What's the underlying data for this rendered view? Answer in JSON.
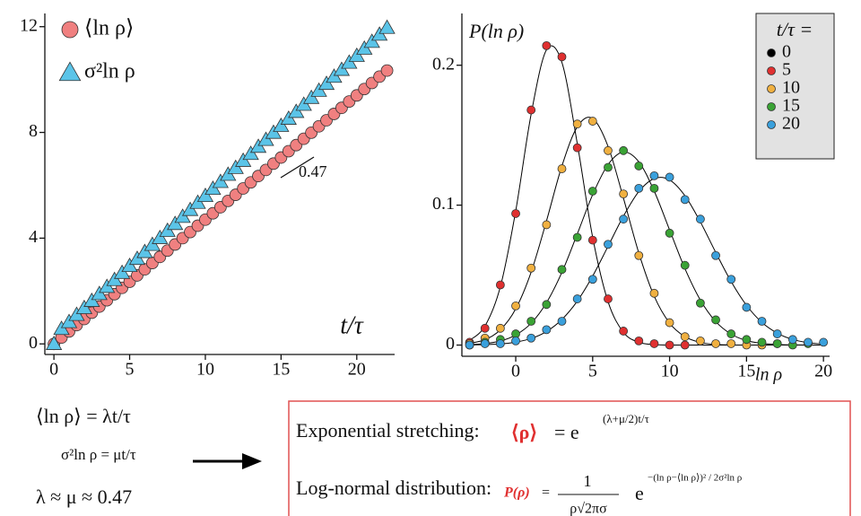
{
  "chart_data": [
    {
      "type": "scatter",
      "xlabel": "t/τ",
      "xlim": [
        -0.6,
        22.5
      ],
      "ylim": [
        -0.4,
        12.5
      ],
      "xticks": [
        0,
        5,
        10,
        15,
        20
      ],
      "yticks": [
        0,
        4,
        8,
        12
      ],
      "legend": "top-left",
      "annotation": "0.47",
      "series": [
        {
          "name": "⟨ln ρ⟩",
          "color": "#f08080",
          "marker": "circle",
          "x": [
            0,
            0.5,
            1,
            1.5,
            2,
            2.5,
            3,
            3.5,
            4,
            4.5,
            5,
            5.5,
            6,
            6.5,
            7,
            7.5,
            8,
            8.5,
            9,
            9.5,
            10,
            10.5,
            11,
            11.5,
            12,
            12.5,
            13,
            13.5,
            14,
            14.5,
            15,
            15.5,
            16,
            16.5,
            17,
            17.5,
            18,
            18.5,
            19,
            19.5,
            20,
            20.5,
            21,
            21.5,
            22
          ],
          "values": [
            0,
            0.24,
            0.47,
            0.71,
            0.94,
            1.18,
            1.41,
            1.65,
            1.88,
            2.12,
            2.35,
            2.59,
            2.82,
            3.06,
            3.29,
            3.53,
            3.76,
            4,
            4.23,
            4.47,
            4.7,
            4.94,
            5.17,
            5.41,
            5.64,
            5.88,
            6.11,
            6.35,
            6.58,
            6.82,
            7.05,
            7.29,
            7.52,
            7.76,
            7.99,
            8.23,
            8.46,
            8.7,
            8.93,
            9.17,
            9.4,
            9.64,
            9.87,
            10.11,
            10.34
          ]
        },
        {
          "name": "σ²ln ρ",
          "color": "#5bc4e8",
          "marker": "triangle",
          "x": [
            0,
            0.5,
            1,
            1.5,
            2,
            2.5,
            3,
            3.5,
            4,
            4.5,
            5,
            5.5,
            6,
            6.5,
            7,
            7.5,
            8,
            8.5,
            9,
            9.5,
            10,
            10.5,
            11,
            11.5,
            12,
            12.5,
            13,
            13.5,
            14,
            14.5,
            15,
            15.5,
            16,
            16.5,
            17,
            17.5,
            18,
            18.5,
            19,
            19.5,
            20,
            20.5,
            21,
            21.5,
            22
          ],
          "values": [
            0,
            0.57,
            0.83,
            1.1,
            1.36,
            1.63,
            1.89,
            2.16,
            2.42,
            2.69,
            2.95,
            3.22,
            3.48,
            3.75,
            4.01,
            4.28,
            4.54,
            4.81,
            5.07,
            5.34,
            5.6,
            5.87,
            6.13,
            6.4,
            6.66,
            6.93,
            7.19,
            7.46,
            7.72,
            7.99,
            8.25,
            8.52,
            8.78,
            9.05,
            9.31,
            9.58,
            9.84,
            10.11,
            10.37,
            10.64,
            10.9,
            11.17,
            11.43,
            11.7,
            11.96
          ]
        }
      ]
    },
    {
      "type": "scatter",
      "xlabel": "ln ρ",
      "ylabel": "P(ln ρ)",
      "xlim": [
        -3.5,
        20.4
      ],
      "ylim": [
        -0.008,
        0.237
      ],
      "xticks": [
        0,
        5,
        10,
        15,
        20
      ],
      "yticks": [
        0,
        0.1,
        0.2
      ],
      "legend": "top-right",
      "legend_title": "t/τ =",
      "series": [
        {
          "name": "0",
          "color": "#000000",
          "x": [],
          "values": []
        },
        {
          "name": "5",
          "color": "#e03030",
          "x": [
            -3,
            -2,
            -1,
            0,
            1,
            2,
            3,
            4,
            5,
            6,
            7,
            8,
            9,
            10,
            11
          ],
          "values": [
            0.002,
            0.012,
            0.043,
            0.094,
            0.168,
            0.214,
            0.206,
            0.141,
            0.075,
            0.033,
            0.01,
            0.003,
            0.001,
            0,
            0
          ]
        },
        {
          "name": "10",
          "color": "#f0b040",
          "x": [
            -3,
            -2,
            -1,
            0,
            1,
            2,
            3,
            4,
            5,
            6,
            7,
            8,
            9,
            10,
            11,
            12,
            13,
            14,
            15,
            16,
            17
          ],
          "values": [
            0.001,
            0.005,
            0.012,
            0.028,
            0.055,
            0.086,
            0.126,
            0.158,
            0.16,
            0.139,
            0.108,
            0.064,
            0.037,
            0.016,
            0.006,
            0.003,
            0.001,
            0.001,
            0,
            0,
            0.001
          ]
        },
        {
          "name": "15",
          "color": "#3aa335",
          "x": [
            -3,
            -2,
            -1,
            0,
            1,
            2,
            3,
            4,
            5,
            6,
            7,
            8,
            9,
            10,
            11,
            12,
            13,
            14,
            15,
            16,
            17,
            18,
            19
          ],
          "values": [
            0,
            0.002,
            0.004,
            0.008,
            0.017,
            0.029,
            0.054,
            0.077,
            0.11,
            0.127,
            0.139,
            0.128,
            0.112,
            0.08,
            0.057,
            0.03,
            0.018,
            0.008,
            0.004,
            0.002,
            0.001,
            0,
            0.001
          ]
        },
        {
          "name": "20",
          "color": "#3aa0dc",
          "x": [
            -3,
            -2,
            -1,
            0,
            1,
            2,
            3,
            4,
            5,
            6,
            7,
            8,
            9,
            10,
            11,
            12,
            13,
            14,
            15,
            16,
            17,
            18,
            19,
            20
          ],
          "values": [
            0,
            0.001,
            0.001,
            0.003,
            0.005,
            0.011,
            0.017,
            0.033,
            0.047,
            0.072,
            0.09,
            0.112,
            0.121,
            0.12,
            0.104,
            0.09,
            0.064,
            0.047,
            0.027,
            0.017,
            0.008,
            0.004,
            0.002,
            0.002
          ]
        }
      ],
      "curve_x": [
        -3,
        -2,
        -1,
        0,
        1,
        2,
        3,
        4,
        5,
        6,
        7,
        8,
        9,
        10,
        11,
        12,
        13,
        14,
        15,
        16,
        17,
        18,
        19,
        20
      ],
      "curves": [
        {
          "color": "#000000",
          "values": [
            0.0033,
            0.0136,
            0.0417,
            0.096,
            0.165,
            0.211,
            0.202,
            0.144,
            0.077,
            0.031,
            0.0091,
            0.002,
            0.0003,
            0,
            0,
            0,
            0,
            0,
            0,
            0,
            0,
            0,
            0,
            0
          ]
        },
        {
          "color": "#000000",
          "values": [
            0.0012,
            0.0039,
            0.0109,
            0.0259,
            0.0521,
            0.0888,
            0.128,
            0.156,
            0.162,
            0.142,
            0.105,
            0.0658,
            0.0349,
            0.0157,
            0.006,
            0.0019,
            0.0005,
            0.0001,
            0,
            0,
            0,
            0,
            0,
            0
          ]
        },
        {
          "color": "#000000",
          "values": [
            0.0003,
            0.0011,
            0.0029,
            0.0072,
            0.0156,
            0.0303,
            0.052,
            0.0794,
            0.1075,
            0.129,
            0.138,
            0.131,
            0.11,
            0.0823,
            0.0546,
            0.0322,
            0.0168,
            0.0078,
            0.0032,
            0.0012,
            0.0004,
            0.0001,
            0,
            0
          ]
        },
        {
          "color": "#000000",
          "values": [
            0.0001,
            0.0003,
            0.0008,
            0.0021,
            0.0047,
            0.0097,
            0.0183,
            0.0314,
            0.0493,
            0.0706,
            0.0921,
            0.1097,
            0.119,
            0.118,
            0.1067,
            0.088,
            0.0662,
            0.0454,
            0.0284,
            0.0162,
            0.0085,
            0.004,
            0.0017,
            0.0007
          ]
        }
      ]
    }
  ],
  "notes": {
    "left": [
      "⟨ln ρ⟩ = λt/τ",
      "σ²ln ρ = μt/τ",
      "λ ≈ μ ≈ 0.47"
    ],
    "box": {
      "line1_label": "Exponential stretching:",
      "line1_formula": "⟨ρ⟩",
      "line1_eq": "= e",
      "line1_exponent": "(λ+μ/2)t/τ",
      "line2_label": "Log-normal distribution:",
      "line2_formula": "P(ρ)",
      "line2_eq": "=",
      "fraction_num": "1",
      "fraction_den": "ρ√2πσ",
      "exp_base": "e",
      "exponent": "−(ln ρ−⟨ln ρ⟩)² / 2σ²ln ρ"
    }
  }
}
